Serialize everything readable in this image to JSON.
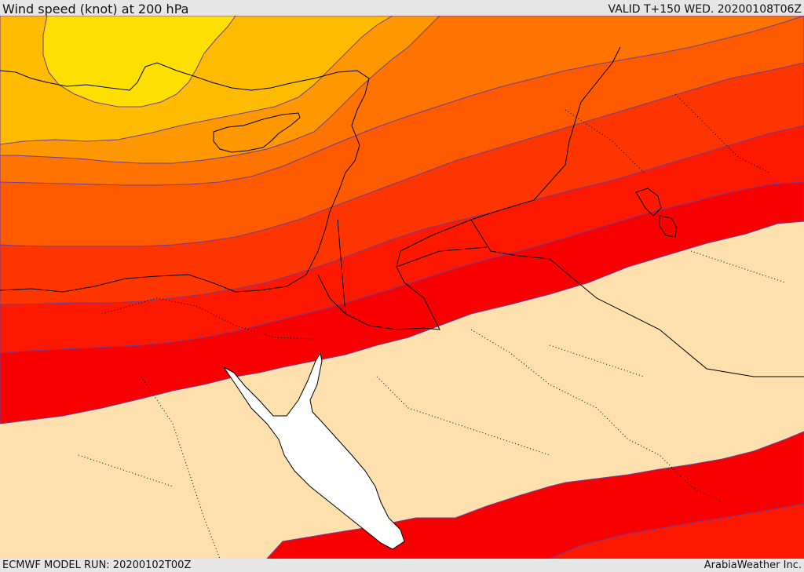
{
  "header": {
    "title": "Wind speed (knot) at 200 hPa",
    "valid": "VALID T+150 WED. 20200108T06Z"
  },
  "footer": {
    "model_run": "ECMWF MODEL RUN: 20200102T00Z",
    "credit": "ArabiaWeather Inc."
  },
  "map": {
    "fill_colors": [
      "#fde0ad",
      "#ffdf00",
      "#ffbb00",
      "#ff9800",
      "#ff7300",
      "#ff5a00",
      "#ff3500",
      "#ff1800",
      "#f80000"
    ],
    "sea_color": "#ffffff",
    "contour_color": "#6a3d9a",
    "coastline_color": "#000000",
    "border_style": "dotted"
  }
}
